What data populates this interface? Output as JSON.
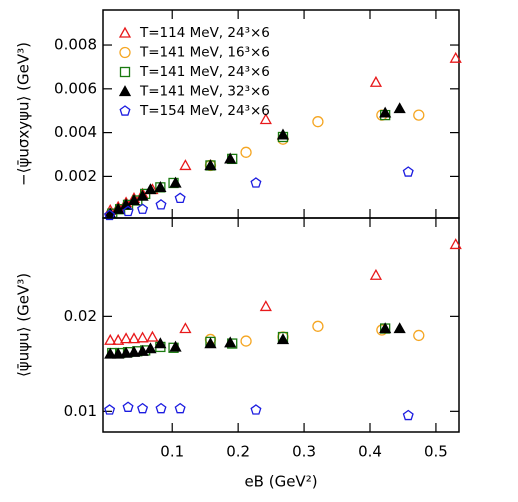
{
  "chart_data": [
    {
      "type": "scatter",
      "ylabel": "−⟨ψ̄uσxyψu⟩  (GeV³)",
      "xlim": [
        -0.005,
        0.535
      ],
      "xticks": [
        0.1,
        0.2,
        0.3,
        0.4,
        0.5
      ],
      "show_xtick_labels": false,
      "ylim": [
        0.0001,
        0.0096
      ],
      "yticks": [
        0.002,
        0.004,
        0.006,
        0.008
      ],
      "log_y": false,
      "legend": "upper-left",
      "series": [
        {
          "name": "T=114 MeV, 24³×6",
          "color": "#e8191b",
          "marker": "triangle",
          "x": [
            0.006,
            0.018,
            0.03,
            0.042,
            0.055,
            0.07,
            0.12,
            0.242,
            0.409,
            0.53
          ],
          "values": [
            0.00045,
            0.0006,
            0.0008,
            0.001,
            0.0012,
            0.0014,
            0.0025,
            0.0046,
            0.0063,
            0.0074
          ]
        },
        {
          "name": "T=141 MeV, 16³×6",
          "color": "#f5a623",
          "marker": "circle",
          "x": [
            0.158,
            0.212,
            0.268,
            0.321,
            0.418,
            0.474
          ],
          "values": [
            0.0025,
            0.0031,
            0.0037,
            0.0045,
            0.0048,
            0.0048
          ]
        },
        {
          "name": "T=141 MeV, 24³×6",
          "color": "#1a7a10",
          "marker": "square",
          "x": [
            0.009,
            0.021,
            0.033,
            0.047,
            0.059,
            0.082,
            0.102,
            0.158,
            0.191,
            0.268,
            0.423
          ],
          "values": [
            0.0003,
            0.0005,
            0.0007,
            0.0009,
            0.0012,
            0.0015,
            0.0017,
            0.0025,
            0.0028,
            0.0038,
            0.0048
          ]
        },
        {
          "name": "T=141 MeV, 32³×6",
          "color": "#000000",
          "marker": "triangle-filled",
          "x": [
            0.006,
            0.018,
            0.03,
            0.042,
            0.055,
            0.067,
            0.082,
            0.105,
            0.158,
            0.188,
            0.268,
            0.423,
            0.445
          ],
          "values": [
            0.0003,
            0.0005,
            0.0007,
            0.0009,
            0.0011,
            0.0014,
            0.0015,
            0.0017,
            0.0025,
            0.0028,
            0.0039,
            0.0049,
            0.0051
          ]
        },
        {
          "name": "T=154 MeV, 24³×6",
          "color": "#1c1ce0",
          "marker": "pentagon",
          "x": [
            0.005,
            0.033,
            0.055,
            0.083,
            0.112,
            0.227,
            0.458
          ],
          "values": [
            0.00022,
            0.0004,
            0.0005,
            0.0007,
            0.001,
            0.0017,
            0.0022
          ]
        }
      ]
    },
    {
      "type": "scatter",
      "ylabel": "⟨ψ̄uψu⟩  (GeV³)",
      "xlabel": "eB  (GeV²)",
      "xlim": [
        -0.005,
        0.535
      ],
      "xticks": [
        0.1,
        0.2,
        0.3,
        0.4,
        0.5
      ],
      "show_xtick_labels": true,
      "ylim": [
        0.0086,
        0.041
      ],
      "yticks": [
        0.01,
        0.02
      ],
      "log_y": true,
      "series": [
        {
          "color": "#e8191b",
          "marker": "triangle",
          "x": [
            0.006,
            0.018,
            0.03,
            0.042,
            0.055,
            0.07,
            0.12,
            0.242,
            0.409,
            0.53
          ],
          "values": [
            0.0168,
            0.0168,
            0.017,
            0.017,
            0.0171,
            0.0172,
            0.0183,
            0.0215,
            0.027,
            0.0338
          ]
        },
        {
          "color": "#f5a623",
          "marker": "circle",
          "x": [
            0.158,
            0.212,
            0.268,
            0.321,
            0.418,
            0.474
          ],
          "values": [
            0.0169,
            0.0167,
            0.0172,
            0.0186,
            0.0181,
            0.0174
          ]
        },
        {
          "color": "#1a7a10",
          "marker": "square",
          "x": [
            0.009,
            0.021,
            0.033,
            0.047,
            0.059,
            0.082,
            0.102,
            0.158,
            0.191,
            0.268,
            0.423
          ],
          "values": [
            0.0153,
            0.0153,
            0.0154,
            0.0155,
            0.0156,
            0.016,
            0.0159,
            0.0166,
            0.0164,
            0.0172,
            0.0183
          ]
        },
        {
          "color": "#000000",
          "marker": "triangle-filled",
          "x": [
            0.006,
            0.018,
            0.03,
            0.042,
            0.055,
            0.067,
            0.082,
            0.105,
            0.158,
            0.188,
            0.268,
            0.423,
            0.445
          ],
          "values": [
            0.0152,
            0.0152,
            0.0153,
            0.0154,
            0.0155,
            0.0158,
            0.0164,
            0.016,
            0.0164,
            0.0165,
            0.0169,
            0.0183,
            0.0183
          ]
        },
        {
          "color": "#1c1ce0",
          "marker": "pentagon",
          "x": [
            0.005,
            0.033,
            0.055,
            0.083,
            0.112,
            0.227,
            0.458
          ],
          "values": [
            0.0101,
            0.0103,
            0.0102,
            0.0102,
            0.0102,
            0.0101,
            0.0097
          ]
        }
      ]
    }
  ]
}
